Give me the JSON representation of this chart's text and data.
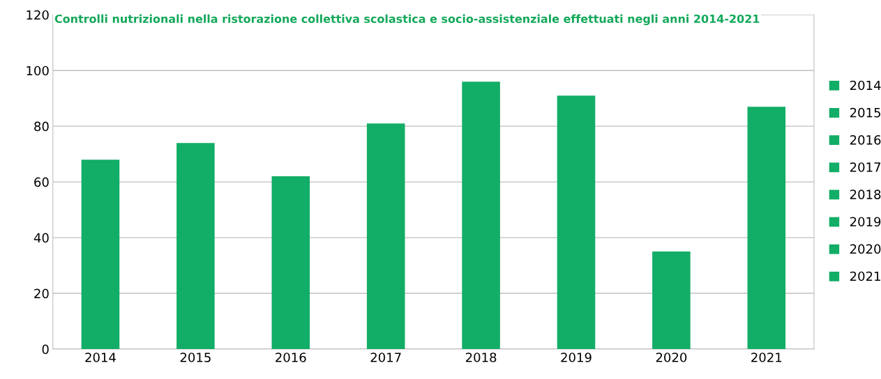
{
  "chart_data": {
    "type": "bar",
    "title": "Controlli nutrizionali nella ristorazione collettiva scolastica e socio-assistenziale effettuati negli anni 2014-2021",
    "categories": [
      "2014",
      "2015",
      "2016",
      "2017",
      "2018",
      "2019",
      "2020",
      "2021"
    ],
    "series": [
      {
        "name": "2014",
        "color": "#12ad66",
        "values": [
          68,
          null,
          null,
          null,
          null,
          null,
          null,
          null
        ]
      },
      {
        "name": "2015",
        "color": "#12ad66",
        "values": [
          null,
          74,
          null,
          null,
          null,
          null,
          null,
          null
        ]
      },
      {
        "name": "2016",
        "color": "#12ad66",
        "values": [
          null,
          null,
          62,
          null,
          null,
          null,
          null,
          null
        ]
      },
      {
        "name": "2017",
        "color": "#12ad66",
        "values": [
          null,
          null,
          null,
          81,
          null,
          null,
          null,
          null
        ]
      },
      {
        "name": "2018",
        "color": "#12ad66",
        "values": [
          null,
          null,
          null,
          null,
          96,
          null,
          null,
          null
        ]
      },
      {
        "name": "2019",
        "color": "#12ad66",
        "values": [
          null,
          null,
          null,
          null,
          null,
          91,
          null,
          null
        ]
      },
      {
        "name": "2020",
        "color": "#12ad66",
        "values": [
          null,
          null,
          null,
          null,
          null,
          null,
          35,
          null
        ]
      },
      {
        "name": "2021",
        "color": "#12ad66",
        "values": [
          null,
          null,
          null,
          null,
          null,
          null,
          null,
          87
        ]
      }
    ],
    "ylim": [
      0,
      120
    ],
    "yticks": [
      0,
      20,
      40,
      60,
      80,
      100,
      120
    ],
    "grid": "y",
    "legend": "right"
  }
}
